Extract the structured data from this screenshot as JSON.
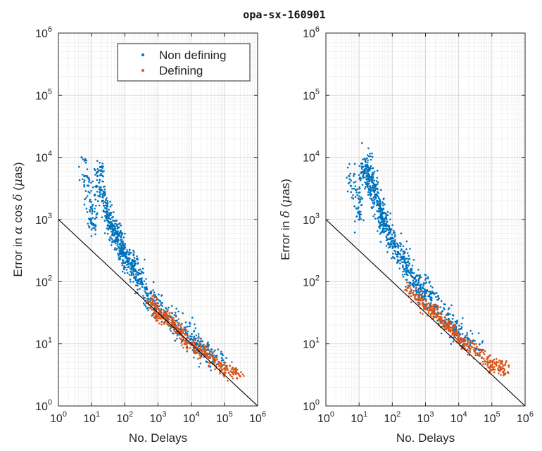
{
  "chart_data": {
    "title": "opa-sx-160901",
    "panels": [
      {
        "type": "scatter",
        "ylabel_parts": [
          "Error in ",
          "α",
          " cos ",
          "δ",
          " (",
          "μ",
          "as)"
        ],
        "xlabel": "No. Delays",
        "xscale": "log",
        "yscale": "log",
        "xlim": [
          1,
          1000000
        ],
        "ylim": [
          1,
          1000000
        ],
        "grid": true,
        "legend": {
          "location": "top-right",
          "entries": [
            "Non defining",
            "Defining"
          ]
        },
        "reference_line": {
          "from": [
            1,
            1000
          ],
          "to": [
            1000000,
            1
          ]
        },
        "series": [
          {
            "name": "Non defining",
            "color": "#0072BD",
            "x": [
              5,
              6,
              8,
              9,
              12,
              15,
              18,
              20,
              22,
              25,
              28,
              30,
              35,
              40,
              45,
              50,
              55,
              60,
              70,
              80,
              90,
              100,
              110,
              120,
              150,
              180,
              200,
              250,
              300,
              400,
              500,
              700,
              1000,
              1500,
              2000,
              3000,
              5000,
              7000,
              10000,
              15000,
              20000,
              30000,
              50000,
              100000
            ],
            "y": [
              10000,
              5000,
              3500,
              1000,
              800,
              5000,
              7000,
              3000,
              2000,
              2500,
              1500,
              1200,
              900,
              800,
              700,
              600,
              500,
              500,
              400,
              350,
              300,
              280,
              250,
              220,
              200,
              180,
              150,
              130,
              100,
              80,
              60,
              50,
              40,
              30,
              28,
              22,
              17,
              15,
              12,
              10,
              9,
              8,
              6,
              5
            ]
          },
          {
            "name": "Defining",
            "color": "#D95319",
            "x": [
              500,
              800,
              1000,
              1500,
              2000,
              3000,
              4000,
              5000,
              7000,
              10000,
              15000,
              20000,
              30000,
              50000,
              80000,
              100000,
              200000,
              300000
            ],
            "y": [
              45,
              40,
              30,
              28,
              25,
              20,
              16,
              14,
              12,
              10,
              8,
              8,
              7,
              5,
              4.5,
              4,
              3.5,
              3
            ]
          }
        ]
      },
      {
        "type": "scatter",
        "ylabel_parts": [
          "Error in ",
          "δ",
          " (",
          "μ",
          "as)"
        ],
        "xlabel": "No. Delays",
        "xscale": "log",
        "yscale": "log",
        "xlim": [
          1,
          1000000
        ],
        "ylim": [
          1,
          1000000
        ],
        "grid": true,
        "reference_line": {
          "from": [
            1,
            1000
          ],
          "to": [
            1000000,
            1
          ]
        },
        "series": [
          {
            "name": "Non defining",
            "color": "#0072BD",
            "x": [
              5,
              8,
              10,
              12,
              15,
              18,
              20,
              22,
              25,
              30,
              35,
              40,
              45,
              50,
              60,
              70,
              80,
              100,
              120,
              150,
              200,
              250,
              300,
              400,
              500,
              700,
              1000,
              1500,
              2000,
              3000,
              5000,
              7000,
              10000,
              20000,
              50000
            ],
            "y": [
              5000,
              3000,
              1000,
              8000,
              6000,
              7000,
              5000,
              3000,
              4000,
              2500,
              2000,
              1500,
              1200,
              1000,
              800,
              700,
              600,
              500,
              400,
              300,
              250,
              200,
              150,
              120,
              100,
              80,
              70,
              50,
              40,
              30,
              25,
              20,
              15,
              12,
              8
            ]
          },
          {
            "name": "Defining",
            "color": "#D95319",
            "x": [
              300,
              500,
              800,
              1000,
              1500,
              2000,
              3000,
              4000,
              5000,
              7000,
              10000,
              15000,
              20000,
              30000,
              50000,
              80000,
              100000,
              200000,
              300000
            ],
            "y": [
              80,
              60,
              50,
              40,
              35,
              30,
              25,
              20,
              18,
              15,
              12,
              10,
              9,
              8,
              6,
              5,
              4.5,
              4,
              3.5
            ]
          }
        ]
      }
    ]
  }
}
